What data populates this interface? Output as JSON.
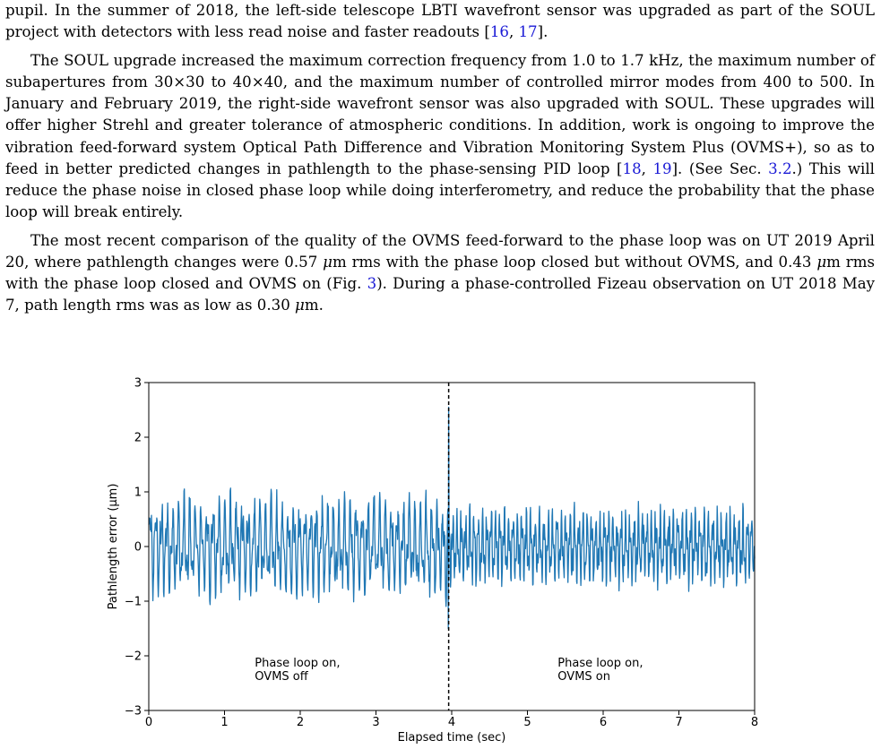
{
  "paragraphs": [
    {
      "id": "p1",
      "indent": false,
      "parts": [
        {
          "t": "pupil. In the summer of 2018, the left-side telescope LBTI wavefront sensor was upgraded as part of the SOUL project with detectors with less read noise and faster readouts ["
        },
        {
          "t": "16",
          "cite": true
        },
        {
          "t": ", "
        },
        {
          "t": "17",
          "cite": true
        },
        {
          "t": "]."
        }
      ]
    },
    {
      "id": "p2",
      "indent": true,
      "parts": [
        {
          "t": "The SOUL upgrade increased the maximum correction frequency from 1.0 to 1.7 kHz, the maximum number of subapertures from 30×30 to 40×40, and the maximum number of controlled mirror modes from 400 to 500. In January and February 2019, the right-side wavefront sensor was also upgraded with SOUL. These upgrades will offer higher Strehl and greater tolerance of atmospheric conditions. In addition, work is ongoing to improve the vibration feed-forward system Optical Path Difference and Vibration Monitoring System Plus (OVMS+), so as to feed in better predicted changes in pathlength to the phase-sensing PID loop ["
        },
        {
          "t": "18",
          "cite": true
        },
        {
          "t": ", "
        },
        {
          "t": "19",
          "cite": true
        },
        {
          "t": "]. (See Sec. "
        },
        {
          "t": "3.2",
          "cite": true
        },
        {
          "t": ".) This will reduce the phase noise in closed phase loop while doing interferometry, and reduce the probability that the phase loop will break entirely."
        }
      ]
    },
    {
      "id": "p3",
      "indent": true,
      "parts": [
        {
          "t": "The most recent comparison of the quality of the OVMS feed-forward to the phase loop was on UT 2019 April 20, where pathlength changes were 0.57 "
        },
        {
          "t": "μ",
          "mu": true
        },
        {
          "t": "m rms with the phase loop closed but without OVMS, and 0.43 "
        },
        {
          "t": "μ",
          "mu": true
        },
        {
          "t": "m rms with the phase loop closed and OVMS on (Fig. "
        },
        {
          "t": "3",
          "cite": true
        },
        {
          "t": "). During a phase-controlled Fizeau observation on UT 2018 May 7, path length rms was as low as 0.30 "
        },
        {
          "t": "μ",
          "mu": true
        },
        {
          "t": "m."
        }
      ]
    }
  ],
  "chart_data": {
    "type": "line",
    "xlabel": "Elapsed time (sec)",
    "ylabel": "Pathlength error (μm)",
    "xlim": [
      0,
      8
    ],
    "ylim": [
      -3,
      3
    ],
    "xticks": [
      0,
      1,
      2,
      3,
      4,
      5,
      6,
      7,
      8
    ],
    "yticks": [
      -3,
      -2,
      -1,
      0,
      1,
      2,
      3
    ],
    "xtick_labels": [
      "0",
      "1",
      "2",
      "3",
      "4",
      "5",
      "6",
      "7",
      "8"
    ],
    "ytick_labels": [
      "−3",
      "−2",
      "−1",
      "0",
      "1",
      "2",
      "3"
    ],
    "grid": false,
    "line_color": "#1f77b4",
    "divider": {
      "x": 3.96,
      "style": "dashed",
      "color": "#000000"
    },
    "annotations": [
      {
        "lines": [
          "Phase loop on,",
          "OVMS off"
        ],
        "x": 1.4,
        "y": -2.2
      },
      {
        "lines": [
          "Phase loop on,",
          "OVMS on"
        ],
        "x": 5.4,
        "y": -2.2
      }
    ],
    "series": [
      {
        "segment": "OVMS off",
        "x_range": [
          0,
          3.96
        ],
        "rms": 0.57,
        "approx_range": [
          -1.55,
          1.65
        ],
        "spike": {
          "x": 3.96,
          "y": 2.55
        }
      },
      {
        "segment": "OVMS on",
        "x_range": [
          3.96,
          8
        ],
        "rms": 0.43,
        "approx_range": [
          -1.25,
          1.05
        ]
      }
    ]
  }
}
